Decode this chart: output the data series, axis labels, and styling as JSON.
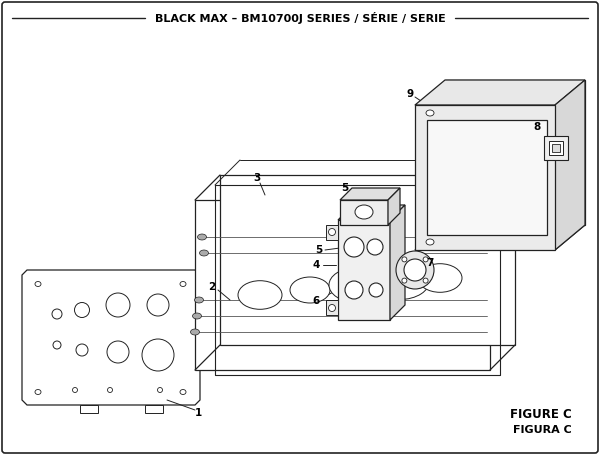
{
  "title": "BLACK MAX – BM10700J SERIES / SÉRIE / SERIE",
  "title_fontsize": 8.0,
  "figure_label1": "FIGURE C",
  "figure_label2": "FIGURA C",
  "bg_color": "#ffffff",
  "line_color": "#222222",
  "gray_fill": "#e8e8e8",
  "mid_gray": "#cccccc",
  "dark_gray": "#aaaaaa"
}
